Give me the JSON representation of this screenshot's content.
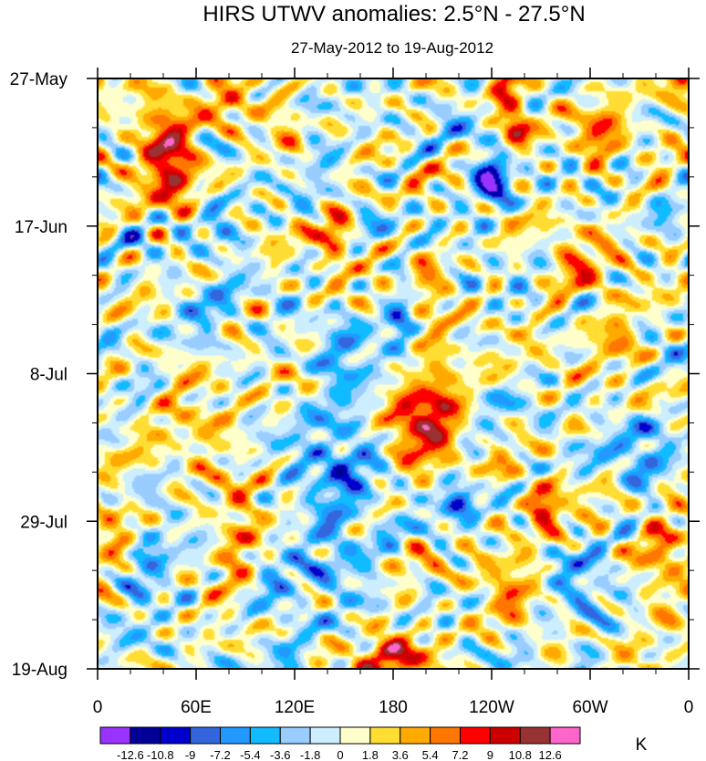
{
  "chart_data": {
    "type": "heatmap",
    "title": "HIRS UTWV anomalies: 2.5°N - 27.5°N",
    "subtitle": "27-May-2012 to 19-Aug-2012",
    "xlabel": "",
    "ylabel": "",
    "x_range": [
      0,
      360
    ],
    "y_range": [
      "27-May-2012",
      "19-Aug-2012"
    ],
    "y_range_days": [
      0,
      84
    ],
    "x_major_ticks": [
      {
        "value": 0,
        "label": "0"
      },
      {
        "value": 60,
        "label": "60E"
      },
      {
        "value": 120,
        "label": "120E"
      },
      {
        "value": 180,
        "label": "180"
      },
      {
        "value": 240,
        "label": "120W"
      },
      {
        "value": 300,
        "label": "60W"
      },
      {
        "value": 360,
        "label": "0"
      }
    ],
    "y_major_ticks": [
      {
        "value": 0,
        "label": "27-May"
      },
      {
        "value": 21,
        "label": "17-Jun"
      },
      {
        "value": 42,
        "label": "8-Jul"
      },
      {
        "value": 63,
        "label": "29-Jul"
      },
      {
        "value": 84,
        "label": "19-Aug"
      }
    ],
    "colorbar": {
      "unit": "K",
      "levels": [
        "-12.6",
        "-10.8",
        "-9",
        "-7.2",
        "-5.4",
        "-3.6",
        "-1.8",
        "0",
        "1.8",
        "3.6",
        "5.4",
        "7.2",
        "9",
        "10.8",
        "12.6"
      ],
      "colors": [
        "#9933ff",
        "#000099",
        "#0000cc",
        "#3366dd",
        "#2299ff",
        "#11bbff",
        "#99ccff",
        "#cceeff",
        "#ffffcc",
        "#ffdd33",
        "#ffaa00",
        "#ff7700",
        "#ff0000",
        "#cc0000",
        "#993333",
        "#ff66cc"
      ]
    },
    "features": [
      {
        "lon": 45,
        "day": 12,
        "value": 9.0,
        "spread_lon": 12,
        "spread_day": 4.5
      },
      {
        "lon": 38,
        "day": 6,
        "value": 6.0,
        "spread_lon": 10,
        "spread_day": 3
      },
      {
        "lon": 255,
        "day": 8,
        "value": 9.5,
        "spread_lon": 6,
        "spread_day": 3
      },
      {
        "lon": 247,
        "day": 2,
        "value": 7.0,
        "spread_lon": 6,
        "spread_day": 2
      },
      {
        "lon": 195,
        "day": 49,
        "value": 9.0,
        "spread_lon": 12,
        "spread_day": 4.5
      },
      {
        "lon": 210,
        "day": 44,
        "value": 6.0,
        "spread_lon": 8,
        "spread_day": 5
      },
      {
        "lon": 182,
        "day": 82,
        "value": 8.5,
        "spread_lon": 15,
        "spread_day": 3
      },
      {
        "lon": 145,
        "day": 23,
        "value": 8.0,
        "spread_lon": 7,
        "spread_day": 2.5
      },
      {
        "lon": 198,
        "day": 28,
        "value": 5.5,
        "spread_lon": 8,
        "spread_day": 3
      },
      {
        "lon": 272,
        "day": 61,
        "value": 7.5,
        "spread_lon": 7,
        "spread_day": 3
      },
      {
        "lon": 355,
        "day": 1,
        "value": 8.0,
        "spread_lon": 8,
        "spread_day": 2
      },
      {
        "lon": 320,
        "day": 38,
        "value": 6.0,
        "spread_lon": 8,
        "spread_day": 3
      },
      {
        "lon": 306,
        "day": 9,
        "value": 6.0,
        "spread_lon": 10,
        "spread_day": 3
      },
      {
        "lon": 295,
        "day": 28,
        "value": 4.5,
        "spread_lon": 14,
        "spread_day": 4
      },
      {
        "lon": 80,
        "day": 4,
        "value": 5.0,
        "spread_lon": 8,
        "spread_day": 3
      },
      {
        "lon": 120,
        "day": 7,
        "value": 5.0,
        "spread_lon": 10,
        "spread_day": 3
      },
      {
        "lon": 60,
        "day": 46,
        "value": 4.5,
        "spread_lon": 15,
        "spread_day": 4
      },
      {
        "lon": 345,
        "day": 70,
        "value": 5.0,
        "spread_lon": 10,
        "spread_day": 6
      },
      {
        "lon": 10,
        "day": 63,
        "value": 5.0,
        "spread_lon": 8,
        "spread_day": 4
      },
      {
        "lon": 250,
        "day": 71,
        "value": 5.0,
        "spread_lon": 10,
        "spread_day": 4
      },
      {
        "lon": 85,
        "day": 65,
        "value": 5.0,
        "spread_lon": 10,
        "spread_day": 6
      },
      {
        "lon": 240,
        "day": 14,
        "value": -10.5,
        "spread_lon": 9,
        "spread_day": 3
      },
      {
        "lon": 130,
        "day": 7,
        "value": -8.5,
        "spread_lon": 7,
        "spread_day": 2.5
      },
      {
        "lon": 75,
        "day": 21,
        "value": -6.5,
        "spread_lon": 8,
        "spread_day": 2.5
      },
      {
        "lon": 145,
        "day": 60,
        "value": -5.5,
        "spread_lon": 18,
        "spread_day": 9
      },
      {
        "lon": 220,
        "day": 60,
        "value": -5.5,
        "spread_lon": 8,
        "spread_day": 2.5
      },
      {
        "lon": 65,
        "day": 36,
        "value": -5.0,
        "spread_lon": 12,
        "spread_day": 3
      },
      {
        "lon": 30,
        "day": 70,
        "value": -6.0,
        "spread_lon": 12,
        "spread_day": 3
      },
      {
        "lon": 185,
        "day": 33,
        "value": -5.5,
        "spread_lon": 6,
        "spread_day": 5
      },
      {
        "lon": 330,
        "day": 52,
        "value": -4.5,
        "spread_lon": 12,
        "spread_day": 5
      },
      {
        "lon": 295,
        "day": 74,
        "value": -5.0,
        "spread_lon": 10,
        "spread_day": 4
      },
      {
        "lon": 150,
        "day": 42,
        "value": -4.5,
        "spread_lon": 10,
        "spread_day": 5
      },
      {
        "lon": 110,
        "day": 77,
        "value": -4.5,
        "spread_lon": 10,
        "spread_day": 4
      }
    ]
  }
}
